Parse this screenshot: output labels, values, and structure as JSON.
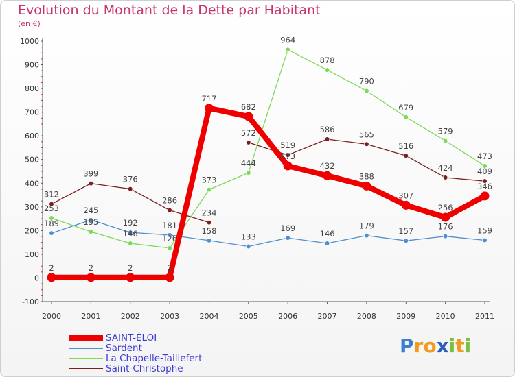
{
  "chart_data": {
    "type": "line",
    "title": "Evolution du Montant de la Dette par Habitant",
    "subtitle": "(en €)",
    "xlabel": "",
    "ylabel": "",
    "x": [
      "2000",
      "2001",
      "2002",
      "2003",
      "2004",
      "2005",
      "2006",
      "2007",
      "2008",
      "2009",
      "2010",
      "2011"
    ],
    "ylim": [
      -100,
      1000
    ],
    "yticks": [
      -100,
      0,
      100,
      200,
      300,
      400,
      500,
      600,
      700,
      800,
      900,
      1000
    ],
    "grid": false,
    "legend_position": "bottom-left",
    "series": [
      {
        "name": "SAINT-ÉLOI",
        "color": "#ee0000",
        "emphasis": true,
        "values": [
          2,
          2,
          2,
          2,
          717,
          682,
          473,
          432,
          388,
          307,
          256,
          346
        ],
        "labels": [
          "2",
          "2",
          "2",
          "2",
          "717",
          "682",
          "473",
          "432",
          "388",
          "307",
          "256",
          "346"
        ]
      },
      {
        "name": "Sardent",
        "color": "#4f8fcf",
        "emphasis": false,
        "values": [
          189,
          245,
          192,
          181,
          158,
          133,
          169,
          146,
          179,
          157,
          176,
          159
        ],
        "labels": [
          "189",
          "245",
          "192",
          "181",
          "158",
          "133",
          "169",
          "146",
          "179",
          "157",
          "176",
          "159"
        ]
      },
      {
        "name": "La Chapelle-Taillefert",
        "color": "#7ed957",
        "emphasis": false,
        "values": [
          253,
          195,
          146,
          126,
          373,
          444,
          964,
          878,
          790,
          679,
          579,
          473
        ],
        "labels": [
          "253",
          "195",
          "146",
          "126",
          "373",
          "444",
          "964",
          "878",
          "790",
          "679",
          "579",
          "473"
        ]
      },
      {
        "name": "Saint-Christophe",
        "color": "#7a1f1f",
        "emphasis": false,
        "values": [
          312,
          399,
          376,
          286,
          234,
          572,
          519,
          586,
          565,
          516,
          424,
          409
        ],
        "labels": [
          "312",
          "399",
          "376",
          "286",
          "234",
          "572",
          "519",
          "586",
          "565",
          "516",
          "424",
          "409"
        ],
        "gaps_after": [
          "2004"
        ]
      }
    ]
  },
  "logo": {
    "text": "Proxiti",
    "letters": [
      {
        "ch": "P",
        "color": "#3a7fd5"
      },
      {
        "ch": "r",
        "color": "#f29a1f"
      },
      {
        "ch": "o",
        "color": "#f29a1f"
      },
      {
        "ch": "x",
        "color": "#2b5fb8"
      },
      {
        "ch": "i",
        "color": "#78c043"
      },
      {
        "ch": "t",
        "color": "#f29a1f"
      },
      {
        "ch": "i",
        "color": "#78c043"
      }
    ]
  },
  "colors": {
    "title": "#c8326e",
    "legend_text": "#3b3bd4",
    "axis": "#555555",
    "tick_text": "#333333",
    "value_label": "#444444"
  }
}
